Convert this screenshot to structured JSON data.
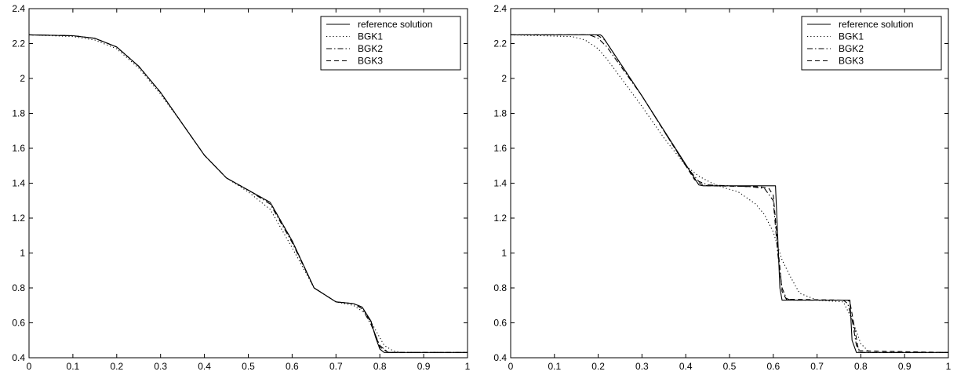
{
  "chart_data": [
    {
      "type": "line",
      "xlim": [
        0,
        1
      ],
      "ylim": [
        0.4,
        2.4
      ],
      "xticks": [
        "0",
        "0.1",
        "0.2",
        "0.3",
        "0.4",
        "0.5",
        "0.6",
        "0.7",
        "0.8",
        "0.9",
        "1"
      ],
      "yticks": [
        "0.4",
        "0.6",
        "0.8",
        "1",
        "1.2",
        "1.4",
        "1.6",
        "1.8",
        "2",
        "2.2",
        "2.4"
      ],
      "grid": false,
      "legend_position": "top-right",
      "series": [
        {
          "name": "reference solution",
          "style": "solid",
          "x": [
            0,
            0.1,
            0.15,
            0.2,
            0.25,
            0.3,
            0.35,
            0.4,
            0.45,
            0.5,
            0.55,
            0.6,
            0.65,
            0.7,
            0.74,
            0.76,
            0.78,
            0.79,
            0.8,
            0.81,
            0.85,
            1
          ],
          "y": [
            2.25,
            2.245,
            2.23,
            2.18,
            2.07,
            1.92,
            1.74,
            1.56,
            1.43,
            1.36,
            1.29,
            1.07,
            0.8,
            0.72,
            0.71,
            0.69,
            0.61,
            0.52,
            0.45,
            0.43,
            0.43,
            0.43
          ]
        },
        {
          "name": "BGK1",
          "style": "dotted",
          "x": [
            0,
            0.1,
            0.15,
            0.2,
            0.25,
            0.3,
            0.35,
            0.4,
            0.45,
            0.5,
            0.55,
            0.6,
            0.65,
            0.7,
            0.74,
            0.77,
            0.79,
            0.81,
            0.83,
            0.85,
            1
          ],
          "y": [
            2.25,
            2.24,
            2.22,
            2.17,
            2.06,
            1.91,
            1.74,
            1.56,
            1.43,
            1.35,
            1.25,
            1.03,
            0.8,
            0.72,
            0.7,
            0.65,
            0.56,
            0.47,
            0.44,
            0.43,
            0.43
          ]
        },
        {
          "name": "BGK2",
          "style": "dashdot",
          "x": [
            0,
            0.1,
            0.15,
            0.2,
            0.25,
            0.3,
            0.35,
            0.4,
            0.45,
            0.5,
            0.55,
            0.6,
            0.65,
            0.7,
            0.74,
            0.76,
            0.78,
            0.8,
            0.82,
            0.85,
            1
          ],
          "y": [
            2.25,
            2.245,
            2.23,
            2.18,
            2.07,
            1.92,
            1.74,
            1.56,
            1.43,
            1.36,
            1.28,
            1.06,
            0.8,
            0.72,
            0.71,
            0.68,
            0.59,
            0.47,
            0.43,
            0.43,
            0.43
          ]
        },
        {
          "name": "BGK3",
          "style": "dashed",
          "x": [
            0,
            0.1,
            0.15,
            0.2,
            0.25,
            0.3,
            0.35,
            0.4,
            0.45,
            0.5,
            0.55,
            0.6,
            0.65,
            0.7,
            0.74,
            0.76,
            0.78,
            0.8,
            0.82,
            0.85,
            1
          ],
          "y": [
            2.25,
            2.245,
            2.23,
            2.18,
            2.07,
            1.92,
            1.74,
            1.56,
            1.43,
            1.36,
            1.29,
            1.07,
            0.8,
            0.72,
            0.71,
            0.69,
            0.6,
            0.46,
            0.43,
            0.43,
            0.43
          ]
        }
      ]
    },
    {
      "type": "line",
      "xlim": [
        0,
        1
      ],
      "ylim": [
        0.4,
        2.4
      ],
      "xticks": [
        "0",
        "0.1",
        "0.2",
        "0.3",
        "0.4",
        "0.5",
        "0.6",
        "0.7",
        "0.8",
        "0.9",
        "1"
      ],
      "yticks": [
        "0.4",
        "0.6",
        "0.8",
        "1",
        "1.2",
        "1.4",
        "1.6",
        "1.8",
        "2",
        "2.2",
        "2.4"
      ],
      "grid": false,
      "legend_position": "top-right",
      "series": [
        {
          "name": "reference solution",
          "style": "solid",
          "x": [
            0,
            0.2,
            0.205,
            0.21,
            0.3,
            0.43,
            0.44,
            0.45,
            0.6,
            0.605,
            0.61,
            0.615,
            0.62,
            0.77,
            0.775,
            0.78,
            0.79,
            1
          ],
          "y": [
            2.25,
            2.25,
            2.25,
            2.24,
            1.9,
            1.39,
            1.385,
            1.385,
            1.385,
            1.385,
            1.1,
            0.8,
            0.73,
            0.73,
            0.73,
            0.5,
            0.43,
            0.43
          ]
        },
        {
          "name": "BGK1",
          "style": "dotted",
          "x": [
            0,
            0.14,
            0.17,
            0.2,
            0.22,
            0.25,
            0.3,
            0.35,
            0.4,
            0.43,
            0.46,
            0.48,
            0.52,
            0.56,
            0.58,
            0.6,
            0.62,
            0.64,
            0.66,
            0.7,
            0.76,
            0.78,
            0.8,
            0.82,
            1
          ],
          "y": [
            2.25,
            2.24,
            2.22,
            2.17,
            2.11,
            2.01,
            1.84,
            1.66,
            1.5,
            1.44,
            1.4,
            1.38,
            1.35,
            1.28,
            1.22,
            1.12,
            0.96,
            0.86,
            0.77,
            0.73,
            0.72,
            0.62,
            0.48,
            0.43,
            0.43
          ]
        },
        {
          "name": "BGK2",
          "style": "dashdot",
          "x": [
            0,
            0.18,
            0.2,
            0.22,
            0.3,
            0.4,
            0.43,
            0.45,
            0.55,
            0.58,
            0.6,
            0.61,
            0.62,
            0.63,
            0.64,
            0.76,
            0.77,
            0.78,
            0.79,
            0.8,
            1
          ],
          "y": [
            2.25,
            2.25,
            2.23,
            2.18,
            1.9,
            1.5,
            1.41,
            1.39,
            1.38,
            1.37,
            1.3,
            1.0,
            0.8,
            0.74,
            0.73,
            0.73,
            0.71,
            0.62,
            0.47,
            0.43,
            0.43
          ]
        },
        {
          "name": "BGK3",
          "style": "dashed",
          "x": [
            0,
            0.19,
            0.2,
            0.215,
            0.3,
            0.42,
            0.435,
            0.45,
            0.57,
            0.59,
            0.6,
            0.61,
            0.62,
            0.63,
            0.77,
            0.775,
            0.785,
            0.795,
            1
          ],
          "y": [
            2.25,
            2.25,
            2.245,
            2.22,
            1.9,
            1.42,
            1.395,
            1.385,
            1.38,
            1.37,
            1.33,
            1.05,
            0.78,
            0.735,
            0.73,
            0.72,
            0.58,
            0.44,
            0.43
          ]
        }
      ]
    }
  ]
}
